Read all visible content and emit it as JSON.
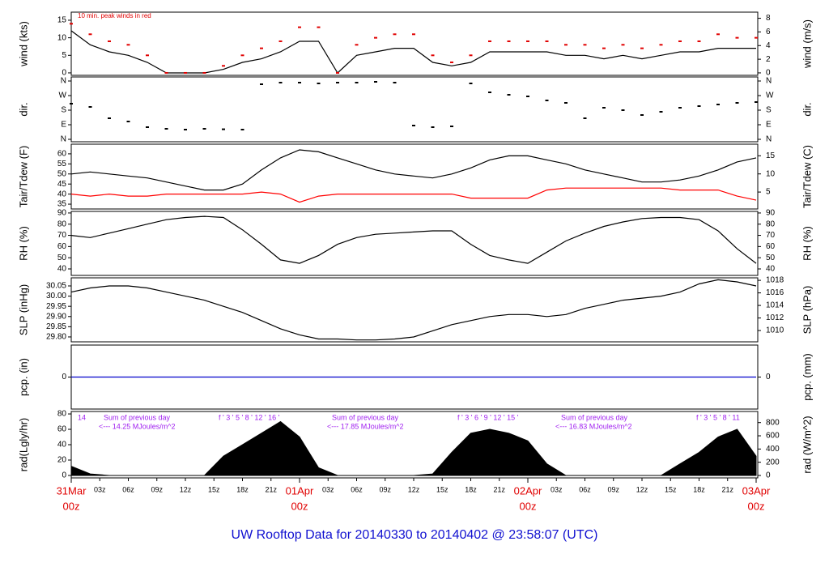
{
  "chart_data": [
    {
      "type": "line",
      "ylabel": "wind (kts)",
      "y2label": "wind (m/s)",
      "annotations": [
        "10 min. peak winds in red"
      ],
      "xlim": [
        0,
        72
      ],
      "x": [
        0,
        2,
        4,
        6,
        8,
        10,
        12,
        14,
        16,
        18,
        20,
        22,
        24,
        26,
        28,
        30,
        32,
        34,
        36,
        38,
        40,
        42,
        44,
        46,
        48,
        50,
        52,
        54,
        56,
        58,
        60,
        62,
        64,
        66,
        68,
        70,
        72
      ],
      "ylim": [
        -0.7,
        17.3
      ],
      "yticks": [
        0,
        5,
        10,
        15
      ],
      "y2lim": [
        -0.36,
        8.9
      ],
      "y2ticks": [
        0,
        2,
        4,
        6,
        8
      ],
      "series": [
        {
          "color": "#000000",
          "mode": "line",
          "values": [
            12,
            8,
            6,
            5,
            3,
            0,
            0,
            0,
            1,
            3,
            4,
            6,
            9,
            9,
            0,
            5,
            6,
            7,
            7,
            3,
            2,
            3,
            6,
            6,
            6,
            6,
            5,
            5,
            4,
            5,
            4,
            5,
            6,
            6,
            7,
            7,
            7
          ]
        },
        {
          "color": "#e00000",
          "mode": "points",
          "values": [
            14,
            11,
            9,
            8,
            5,
            0,
            0,
            0,
            2,
            5,
            7,
            9,
            13,
            13,
            0,
            8,
            10,
            11,
            11,
            5,
            3,
            5,
            9,
            9,
            9,
            9,
            8,
            8,
            7,
            8,
            7,
            8,
            9,
            9,
            11,
            10,
            10
          ]
        }
      ]
    },
    {
      "type": "scatter",
      "ylabel": "dir.",
      "y2label": "dir.",
      "xlim": [
        0,
        72
      ],
      "x": [
        0,
        2,
        4,
        6,
        8,
        10,
        12,
        14,
        16,
        18,
        20,
        22,
        24,
        26,
        28,
        30,
        32,
        34,
        36,
        38,
        40,
        42,
        44,
        46,
        48,
        50,
        52,
        54,
        56,
        58,
        60,
        62,
        64,
        66,
        68,
        70,
        72
      ],
      "ylim": [
        -15,
        385
      ],
      "yticks": [
        {
          "value": 0,
          "label": "N"
        },
        {
          "value": 90,
          "label": "E"
        },
        {
          "value": 180,
          "label": "S"
        },
        {
          "value": 270,
          "label": "W"
        },
        {
          "value": 360,
          "label": "N"
        }
      ],
      "y2lim": [
        -15,
        385
      ],
      "y2ticks": [
        {
          "value": 0,
          "label": "N"
        },
        {
          "value": 90,
          "label": "E"
        },
        {
          "value": 180,
          "label": "S"
        },
        {
          "value": 270,
          "label": "W"
        },
        {
          "value": 360,
          "label": "N"
        }
      ],
      "series": [
        {
          "color": "#000000",
          "values": [
            220,
            200,
            130,
            110,
            75,
            65,
            60,
            65,
            62,
            60,
            340,
            350,
            350,
            345,
            350,
            350,
            355,
            350,
            85,
            75,
            80,
            345,
            290,
            275,
            265,
            240,
            225,
            130,
            195,
            180,
            150,
            170,
            195,
            205,
            215,
            225,
            230
          ]
        }
      ]
    },
    {
      "type": "line",
      "ylabel": "Tair/Tdew (F)",
      "y2label": "Tair/Tdew (C)",
      "xlim": [
        0,
        72
      ],
      "x": [
        0,
        2,
        4,
        6,
        8,
        10,
        12,
        14,
        16,
        18,
        20,
        22,
        24,
        26,
        28,
        30,
        32,
        34,
        36,
        38,
        40,
        42,
        44,
        46,
        48,
        50,
        52,
        54,
        56,
        58,
        60,
        62,
        64,
        66,
        68,
        70,
        72
      ],
      "ylim": [
        32.6,
        64.8
      ],
      "yticks": [
        35,
        40,
        45,
        50,
        55,
        60
      ],
      "y2lim": [
        0.33,
        18.2
      ],
      "y2ticks": [
        5,
        10,
        15
      ],
      "series": [
        {
          "color": "#000000",
          "mode": "line",
          "values": [
            50,
            51,
            50,
            49,
            48,
            46,
            44,
            42,
            42,
            45,
            52,
            58,
            62,
            61,
            58,
            55,
            52,
            50,
            49,
            48,
            50,
            53,
            57,
            59,
            59,
            57,
            55,
            52,
            50,
            48,
            46,
            46,
            47,
            49,
            52,
            56,
            58
          ]
        },
        {
          "color": "#ff0000",
          "mode": "line",
          "values": [
            40,
            39,
            40,
            39,
            39,
            40,
            40,
            40,
            40,
            40,
            41,
            40,
            36,
            39,
            40,
            40,
            40,
            40,
            40,
            40,
            40,
            38,
            38,
            38,
            38,
            42,
            43,
            43,
            43,
            43,
            43,
            43,
            42,
            42,
            42,
            39,
            37
          ]
        }
      ]
    },
    {
      "type": "line",
      "ylabel": "RH (%)",
      "y2label": "RH (%)",
      "xlim": [
        0,
        72
      ],
      "x": [
        0,
        2,
        4,
        6,
        8,
        10,
        12,
        14,
        16,
        18,
        20,
        22,
        24,
        26,
        28,
        30,
        32,
        34,
        36,
        38,
        40,
        42,
        44,
        46,
        48,
        50,
        52,
        54,
        56,
        58,
        60,
        62,
        64,
        66,
        68,
        70,
        72
      ],
      "ylim": [
        34.2,
        91.4
      ],
      "yticks": [
        40,
        50,
        60,
        70,
        80,
        90
      ],
      "y2lim": [
        34.2,
        91.4
      ],
      "y2ticks": [
        40,
        50,
        60,
        70,
        80,
        90
      ],
      "series": [
        {
          "color": "#000000",
          "mode": "line",
          "values": [
            70,
            68,
            72,
            76,
            80,
            84,
            86,
            87,
            86,
            75,
            62,
            48,
            45,
            52,
            62,
            68,
            71,
            72,
            73,
            74,
            74,
            62,
            52,
            48,
            45,
            55,
            65,
            72,
            78,
            82,
            85,
            86,
            86,
            84,
            74,
            58,
            45
          ]
        }
      ]
    },
    {
      "type": "line",
      "ylabel": "SLP (inHg)",
      "y2label": "SLP (hPa)",
      "xlim": [
        0,
        72
      ],
      "x": [
        0,
        2,
        4,
        6,
        8,
        10,
        12,
        14,
        16,
        18,
        20,
        22,
        24,
        26,
        28,
        30,
        32,
        34,
        36,
        38,
        40,
        42,
        44,
        46,
        48,
        50,
        52,
        54,
        56,
        58,
        60,
        62,
        64,
        66,
        68,
        70,
        72
      ],
      "ylim": [
        29.776,
        30.0897
      ],
      "yticks": [
        {
          "value": 29.8,
          "label": "29.80"
        },
        29.85,
        {
          "value": 29.9,
          "label": "29.90"
        },
        29.95,
        {
          "value": 30.0,
          "label": "30.00"
        },
        30.05
      ],
      "y2lim": [
        1008.2,
        1018.4
      ],
      "y2ticks": [
        1010,
        1012,
        1014,
        1016,
        1018
      ],
      "series": [
        {
          "color": "#000000",
          "mode": "line",
          "values": [
            30.02,
            30.04,
            30.05,
            30.05,
            30.04,
            30.02,
            30.0,
            29.98,
            29.95,
            29.92,
            29.88,
            29.84,
            29.81,
            29.79,
            29.79,
            29.785,
            29.785,
            29.79,
            29.8,
            29.83,
            29.86,
            29.88,
            29.9,
            29.91,
            29.91,
            29.9,
            29.91,
            29.94,
            29.96,
            29.98,
            29.99,
            30.0,
            30.02,
            30.06,
            30.08,
            30.07,
            30.05
          ]
        }
      ]
    },
    {
      "type": "line",
      "ylabel": "pcp. (in)",
      "y2label": "pcp. (mm)",
      "xlim": [
        0,
        72
      ],
      "x": [
        0,
        72
      ],
      "ylim": [
        -1,
        1
      ],
      "yticks": [
        0
      ],
      "y2lim": [
        -1,
        1
      ],
      "y2ticks": [
        0
      ],
      "series": [
        {
          "color": "#0000cc",
          "mode": "line",
          "values": [
            0,
            0
          ]
        }
      ]
    },
    {
      "type": "area",
      "ylabel": "rad(Lgly/hr)",
      "y2label": "rad (W/m^2)",
      "annotations": [
        "14",
        "f ' 3 ' 5 ' 8 ' 12 ' 16 '",
        "Sum of previous day",
        "<--- 14.25 MJoules/m^2",
        "Sum of previous day",
        "<--- 17.85 MJoules/m^2",
        "f ' 3 ' 6 ' 9 ' 12 ' 15 '",
        "Sum of previous day",
        "<--- 16.83 MJoules/m^2",
        "f ' 3 ' 5 ' 8 ' 11"
      ],
      "xlim": [
        0,
        72
      ],
      "x": [
        0,
        2,
        4,
        6,
        8,
        10,
        12,
        14,
        16,
        18,
        20,
        22,
        24,
        26,
        28,
        30,
        32,
        34,
        36,
        38,
        40,
        42,
        44,
        46,
        48,
        50,
        52,
        54,
        56,
        58,
        60,
        62,
        64,
        66,
        68,
        70,
        72
      ],
      "ylim": [
        -3.2,
        83.2
      ],
      "yticks": [
        0,
        20,
        40,
        60,
        80
      ],
      "y2lim": [
        -37,
        968
      ],
      "y2ticks": [
        0,
        200,
        400,
        600,
        800
      ],
      "xticks": [
        {
          "value": 3,
          "label": "03z"
        },
        {
          "value": 6,
          "label": "06z"
        },
        {
          "value": 9,
          "label": "09z"
        },
        {
          "value": 12,
          "label": "12z"
        },
        {
          "value": 15,
          "label": "15z"
        },
        {
          "value": 18,
          "label": "18z"
        },
        {
          "value": 21,
          "label": "21z"
        },
        {
          "value": 27,
          "label": "03z"
        },
        {
          "value": 30,
          "label": "06z"
        },
        {
          "value": 33,
          "label": "09z"
        },
        {
          "value": 36,
          "label": "12z"
        },
        {
          "value": 39,
          "label": "15z"
        },
        {
          "value": 42,
          "label": "18z"
        },
        {
          "value": 45,
          "label": "21z"
        },
        {
          "value": 51,
          "label": "03z"
        },
        {
          "value": 54,
          "label": "06z"
        },
        {
          "value": 57,
          "label": "09z"
        },
        {
          "value": 60,
          "label": "12z"
        },
        {
          "value": 63,
          "label": "15z"
        },
        {
          "value": 66,
          "label": "18z"
        },
        {
          "value": 69,
          "label": "21z"
        }
      ],
      "day_ticks": [
        {
          "value": 0,
          "label": "31Mar",
          "sublabel": "00z"
        },
        {
          "value": 24,
          "label": "01Apr",
          "sublabel": "00z"
        },
        {
          "value": 48,
          "label": "02Apr",
          "sublabel": "00z"
        },
        {
          "value": 72,
          "label": "03Apr",
          "sublabel": "00z"
        }
      ],
      "series": [
        {
          "color": "#000000",
          "values": [
            12,
            2,
            0,
            0,
            0,
            0,
            0,
            0,
            25,
            40,
            55,
            70,
            50,
            10,
            0,
            0,
            0,
            0,
            0,
            2,
            30,
            55,
            60,
            55,
            45,
            15,
            0,
            0,
            0,
            0,
            0,
            0,
            15,
            30,
            50,
            60,
            25
          ]
        }
      ]
    }
  ],
  "footer_title": "UW Rooftop Data for 20140330  to  20140402 @ 23:58:07  (UTC)"
}
